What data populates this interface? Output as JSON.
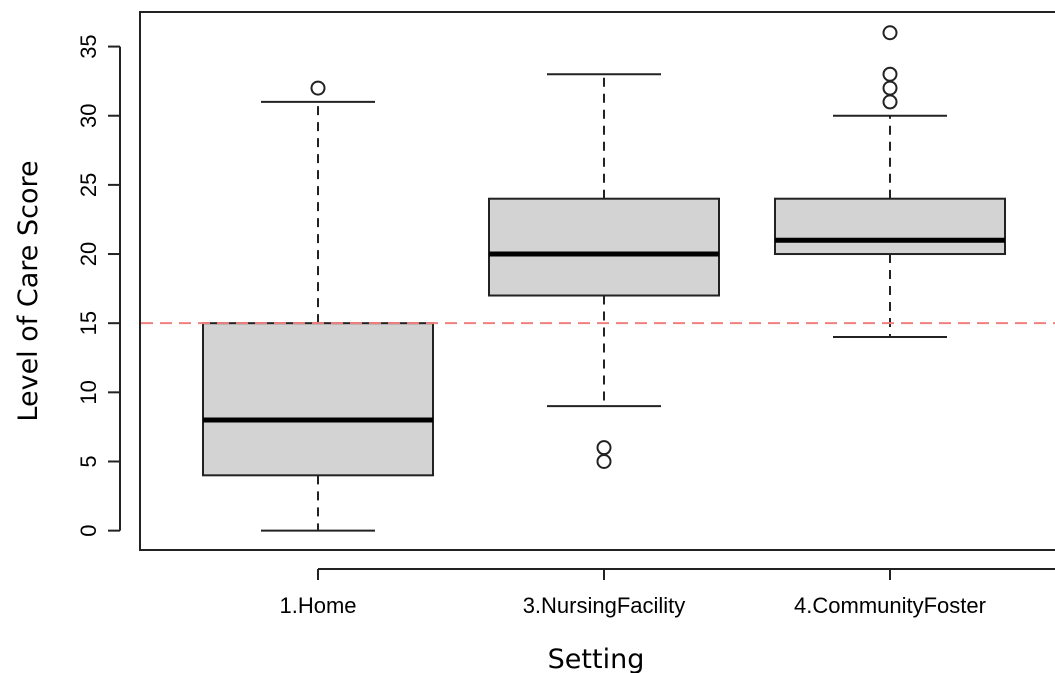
{
  "chart_data": {
    "type": "box",
    "xlabel": "Setting",
    "ylabel": "Level of Care Score",
    "ylim": [
      -1.4,
      37.5
    ],
    "yticks": [
      0,
      5,
      10,
      15,
      20,
      25,
      30,
      35
    ],
    "grid": false,
    "legend": "none",
    "reference_line": {
      "y": 15,
      "style": "dashed",
      "color": "#f08080"
    },
    "box_fill": "#d3d3d3",
    "categories": [
      "1.Home",
      "3.NursingFacility",
      "4.CommunityFoster"
    ],
    "boxes": [
      {
        "category": "1.Home",
        "whisker_low": 0,
        "q1": 4,
        "median": 8,
        "q3": 15,
        "whisker_high": 31,
        "outliers": [
          32
        ]
      },
      {
        "category": "3.NursingFacility",
        "whisker_low": 9,
        "q1": 17,
        "median": 20,
        "q3": 24,
        "whisker_high": 33,
        "outliers": [
          5,
          6
        ]
      },
      {
        "category": "4.CommunityFoster",
        "whisker_low": 14,
        "q1": 20,
        "median": 21,
        "q3": 24,
        "whisker_high": 30,
        "outliers": [
          31,
          32,
          33,
          36
        ]
      }
    ]
  }
}
